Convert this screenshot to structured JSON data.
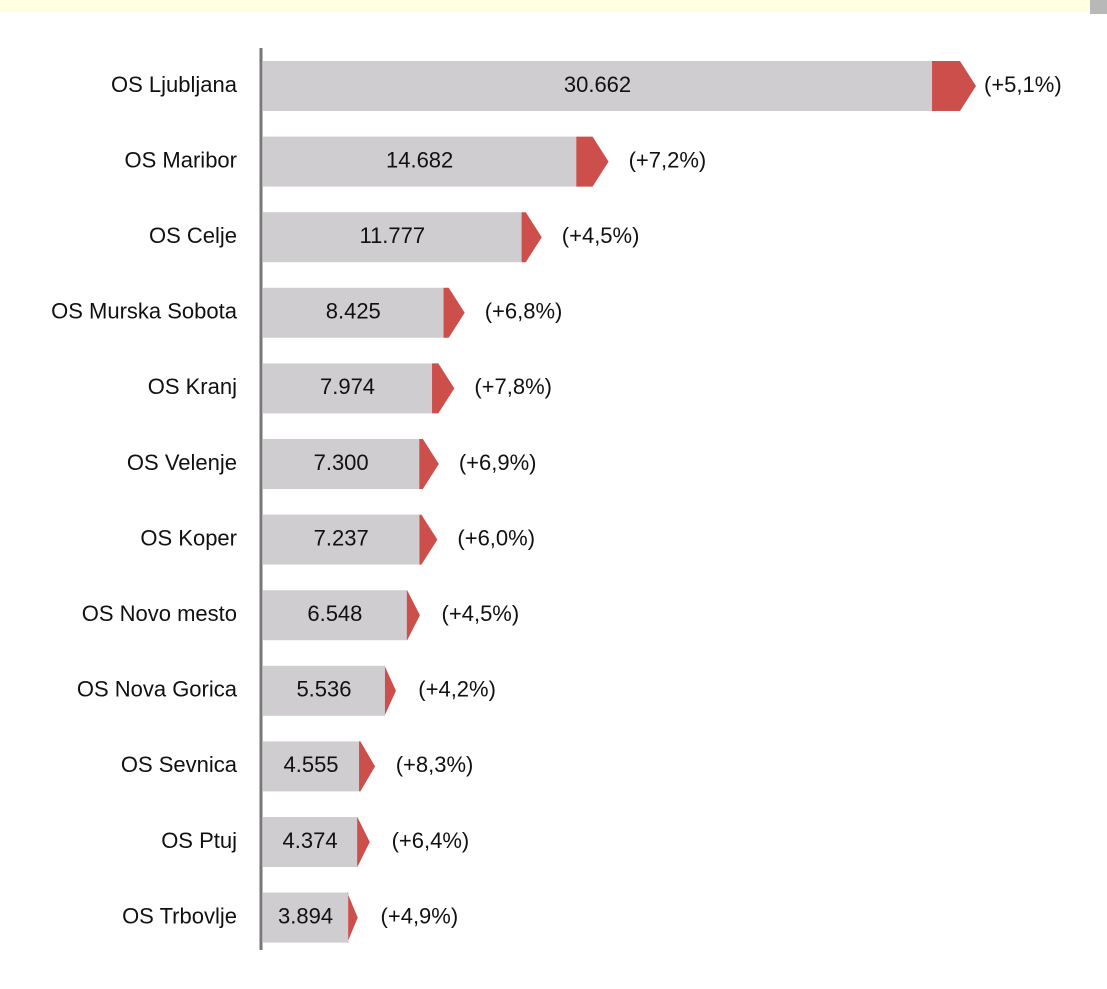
{
  "chart_data": {
    "type": "bar",
    "orientation": "horizontal",
    "categories": [
      "OS Ljubljana",
      "OS Maribor",
      "OS Celje",
      "OS Murska Sobota",
      "OS Kranj",
      "OS Velenje",
      "OS Koper",
      "OS Novo mesto",
      "OS Nova Gorica",
      "OS Sevnica",
      "OS Ptuj",
      "OS Trbovlje"
    ],
    "series": [
      {
        "color": "#cfcdd0",
        "values": [
          30662,
          14682,
          11777,
          8425,
          7974,
          7300,
          7237,
          6548,
          5536,
          4555,
          4374,
          3894
        ],
        "value_labels": [
          "30.662",
          "14.682",
          "11.777",
          "8.425",
          "7.974",
          "7.300",
          "7.237",
          "6.548",
          "5.536",
          "4.555",
          "4.374",
          "3.894"
        ]
      },
      {
        "color": "#cc4f4c",
        "values": [
          5.1,
          7.2,
          4.5,
          6.8,
          7.8,
          6.9,
          6.0,
          4.5,
          4.2,
          8.3,
          6.4,
          4.9
        ],
        "value_labels": [
          "(+5,1%)",
          "(+7,2%)",
          "(+4,5%)",
          "(+6,8%)",
          "(+7,8%)",
          "(+6,9%)",
          "(+6,0%)",
          "(+4,5%)",
          "(+4,2%)",
          "(+8,3%)",
          "(+6,4%)",
          "(+4,9%)"
        ]
      }
    ]
  }
}
